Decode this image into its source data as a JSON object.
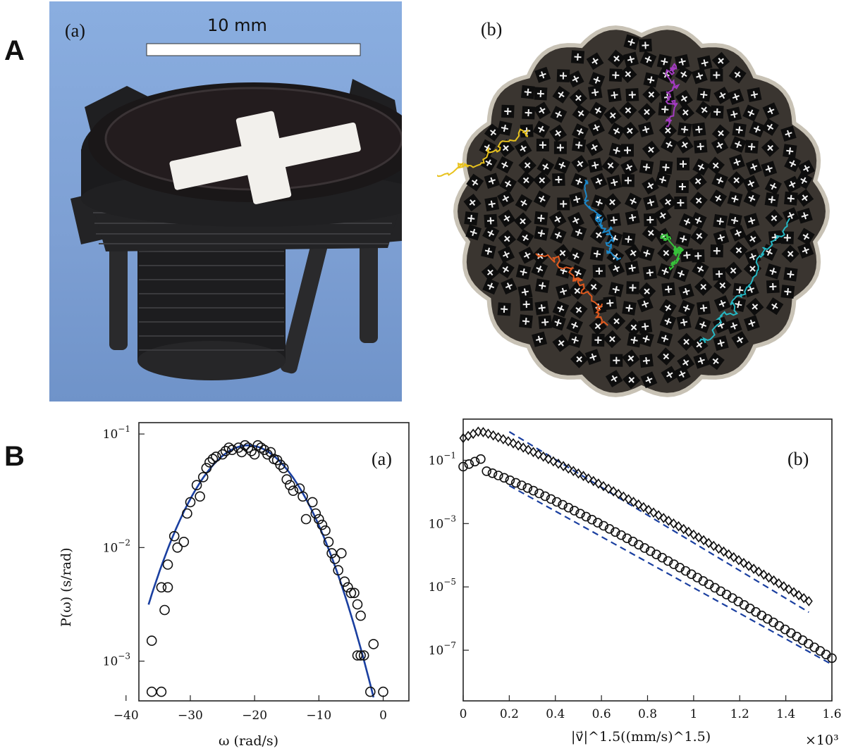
{
  "panels": {
    "A": {
      "letter": "A",
      "a": {
        "label": "(a)",
        "scale_bar": "10 mm"
      },
      "b": {
        "label": "(b)",
        "trajectory_colors": [
          "#a23bbf",
          "#e8c21e",
          "#1b87c9",
          "#e05a1f",
          "#36c23a",
          "#25b7c3"
        ]
      }
    },
    "B": {
      "letter": "B",
      "a": {
        "label": "(a)"
      },
      "b": {
        "label": "(b)"
      }
    }
  },
  "chart_data": [
    {
      "type": "scatter",
      "label": "(a)",
      "xlabel": "ω (rad/s)",
      "ylabel": "P(ω) (s/rad)",
      "xlim": [
        -38,
        4
      ],
      "ylim_log10": [
        -3.35,
        -0.9
      ],
      "yscale": "log",
      "xticks": [
        -40,
        -30,
        -20,
        -10,
        0
      ],
      "xtick_labels": [
        "−40",
        "−30",
        "−20",
        "−10",
        "0"
      ],
      "yticks_exp": [
        -3,
        -2,
        -1
      ],
      "series": [
        {
          "kind": "points",
          "marker": "circle",
          "x": [
            -36,
            -34.5,
            -36,
            -34.5,
            -33.5,
            -33.5,
            -34,
            -32.5,
            -32,
            -31,
            -30,
            -30.5,
            -29,
            -28,
            -28.5,
            -27.5,
            -27,
            -26.5,
            -26,
            -25,
            -24.5,
            -24,
            -23.5,
            -22.5,
            -22,
            -21.5,
            -21,
            -20.5,
            -20,
            -19.5,
            -19,
            -18.5,
            -18,
            -17.5,
            -17,
            -16.5,
            -16,
            -15.5,
            -15,
            -14.5,
            -14,
            -13,
            -12.5,
            -12,
            -11,
            -10.5,
            -10,
            -9.5,
            -9,
            -8.5,
            -8,
            -7.5,
            -7,
            -6.5,
            -6,
            -5.5,
            -5,
            -4.5,
            -4,
            -3.5,
            -3.5,
            -4,
            -3,
            -1.5,
            -2,
            0
          ],
          "y_log10": [
            -3.27,
            -3.27,
            -2.82,
            -2.35,
            -2.35,
            -2.15,
            -2.55,
            -1.9,
            -2.0,
            -1.95,
            -1.6,
            -1.7,
            -1.45,
            -1.38,
            -1.55,
            -1.3,
            -1.25,
            -1.22,
            -1.2,
            -1.18,
            -1.15,
            -1.12,
            -1.14,
            -1.12,
            -1.16,
            -1.1,
            -1.12,
            -1.15,
            -1.18,
            -1.1,
            -1.12,
            -1.14,
            -1.18,
            -1.16,
            -1.22,
            -1.23,
            -1.27,
            -1.3,
            -1.4,
            -1.45,
            -1.5,
            -1.48,
            -1.55,
            -1.75,
            -1.6,
            -1.7,
            -1.75,
            -1.8,
            -1.85,
            -1.95,
            -2.05,
            -2.1,
            -2.2,
            -2.05,
            -2.3,
            -2.35,
            -2.4,
            -2.4,
            -2.5,
            -2.6,
            -2.95,
            -2.95,
            -2.95,
            -2.85,
            -3.27,
            -3.27
          ]
        },
        {
          "kind": "fit",
          "curve": "gaussian",
          "mu": -21,
          "peak_log10": -1.1,
          "sigma_rad_s": 6.1
        }
      ]
    },
    {
      "type": "scatter",
      "label": "(b)",
      "xlabel": "|v⃗|^1.5((mm/s)^1.5)",
      "x_multiplier": "×10³",
      "yscale": "log",
      "xlim": [
        0,
        1.6
      ],
      "ylim_log10": [
        -8.6,
        0.3
      ],
      "xticks": [
        0,
        0.2,
        0.4,
        0.6,
        0.8,
        1,
        1.2,
        1.4,
        1.6
      ],
      "xtick_labels": [
        "0",
        "0.2",
        "0.4",
        "0.6",
        "0.8",
        "1",
        "1.2",
        "1.4",
        "1.6"
      ],
      "yticks_exp": [
        -7,
        -5,
        -3,
        -1
      ],
      "series": [
        {
          "kind": "points",
          "marker": "diamond",
          "name": "",
          "x_range": [
            0,
            1.5
          ],
          "n_points": 70,
          "y0_log10": -0.3,
          "peak_log10": -0.35,
          "end_log10": -5.45
        },
        {
          "kind": "points",
          "marker": "circle",
          "name": "",
          "x_range": [
            0,
            1.6
          ],
          "n_points": 64,
          "y0_log10": -1.2,
          "peak_log10": -1.55,
          "end_log10": -7.25
        },
        {
          "kind": "fit",
          "style": "dashed",
          "x": [
            0.2,
            1.5
          ],
          "y_log10": [
            -0.1,
            -5.8
          ]
        },
        {
          "kind": "fit",
          "style": "dashed",
          "x": [
            0.2,
            1.6
          ],
          "y_log10": [
            -1.8,
            -7.45
          ]
        }
      ]
    }
  ]
}
